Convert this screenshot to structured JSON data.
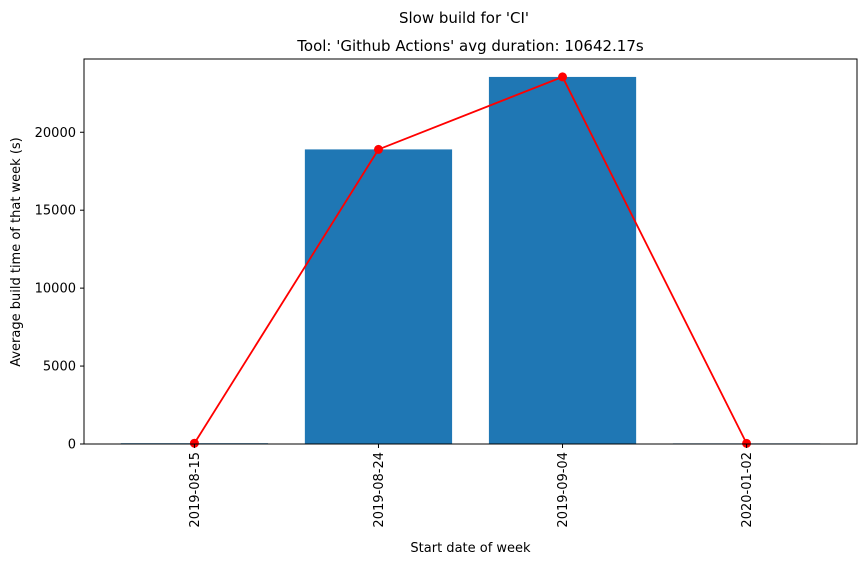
{
  "chart_data": {
    "type": "bar",
    "suptitle": "Slow build for 'CI'",
    "title": "Tool: 'Github Actions' avg duration: 10642.17s",
    "xlabel": "Start date of week",
    "ylabel": "Average build time of that week (s)",
    "categories": [
      "2019-08-15",
      "2019-08-24",
      "2019-09-04",
      "2020-01-02"
    ],
    "values": [
      50,
      18900,
      23550,
      40
    ],
    "line_values": [
      50,
      18900,
      23550,
      40
    ],
    "ylim": [
      0,
      24700
    ],
    "yticks": [
      0,
      5000,
      10000,
      15000,
      20000
    ],
    "grid": false,
    "bar_color": "#1f77b4",
    "line_color": "#ff0000"
  }
}
